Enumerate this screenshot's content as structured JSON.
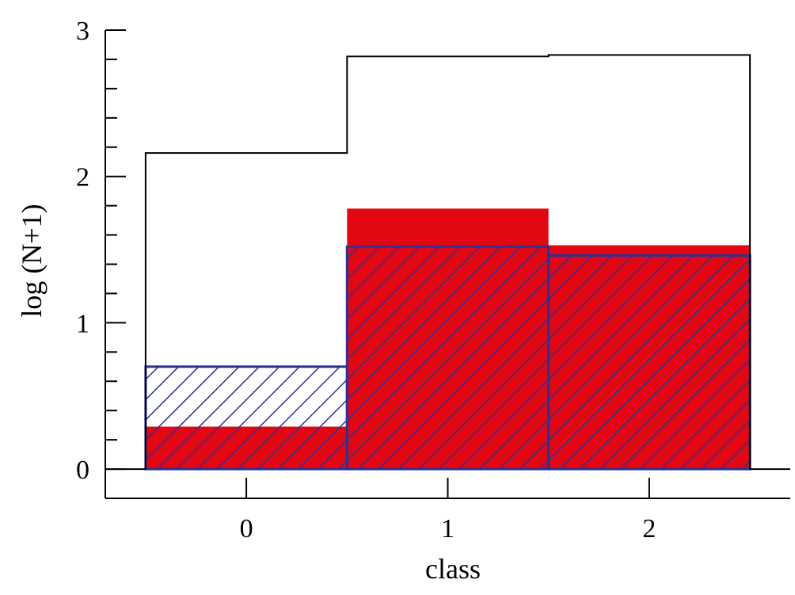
{
  "chart_data": {
    "type": "bar",
    "title": "",
    "xlabel": "class",
    "ylabel": "log (N+1)",
    "categories": [
      "0",
      "1",
      "2"
    ],
    "xlim": [
      -0.7,
      2.7
    ],
    "ylim": [
      -0.2,
      3.0
    ],
    "yticks": [
      0,
      1,
      2,
      3
    ],
    "ytick_labels": [
      "0",
      "1",
      "2",
      "3"
    ],
    "y_minor_step": 0.2,
    "grid": false,
    "legend": "none",
    "series": [
      {
        "style": "outline",
        "color": "#000000",
        "values": [
          2.16,
          2.82,
          2.83
        ]
      },
      {
        "style": "filled",
        "color": "#e30613",
        "values": [
          0.29,
          1.78,
          1.53
        ]
      },
      {
        "style": "hatched",
        "color": "#2e3192",
        "values": [
          0.7,
          1.52,
          1.46
        ]
      }
    ]
  }
}
